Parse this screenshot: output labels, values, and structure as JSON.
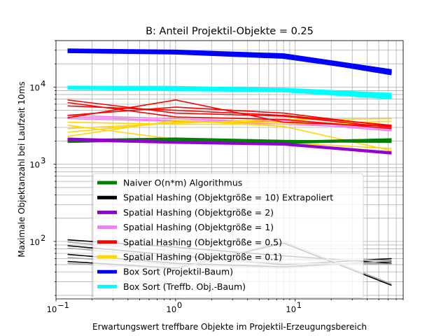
{
  "chart_data": {
    "type": "line",
    "title": "B: Anteil Projektil-Objekte = 0.25",
    "xlabel": "Erwartungswert treffbare Objekte im Projektil-Erzeugungsbereich",
    "ylabel": "Maximale Objektanzahl bei Laufzeit 10ms",
    "xscale": "log",
    "yscale": "log",
    "xlim": [
      0.1,
      80
    ],
    "ylim": [
      18,
      40000
    ],
    "grid": true,
    "legend_position": "lower-center",
    "x": [
      0.125,
      1,
      8,
      64
    ],
    "xticks": [
      {
        "value": 0.1,
        "base": "10",
        "exp": "−1"
      },
      {
        "value": 1,
        "base": "10",
        "exp": "0"
      },
      {
        "value": 10,
        "base": "10",
        "exp": "1"
      }
    ],
    "yticks": [
      {
        "value": 100,
        "base": "10",
        "exp": "2"
      },
      {
        "value": 1000,
        "base": "10",
        "exp": "3"
      },
      {
        "value": 10000,
        "base": "10",
        "exp": "4"
      }
    ],
    "series": [
      {
        "name": "Spatial Hashing (Objektgröße = 10) Extrapoliert",
        "legend_color": "#000000",
        "lines": [
          {
            "color": "#000000",
            "width": 1.6,
            "values": [
              105,
              84,
              65,
              52
            ]
          },
          {
            "color": "#000000",
            "width": 1.6,
            "values": [
              88,
              66,
              50,
              60
            ]
          },
          {
            "color": "#000000",
            "width": 1.6,
            "values": [
              68,
              52,
              47,
              55
            ]
          },
          {
            "color": "#000000",
            "width": 1.6,
            "values": [
              55,
              45,
              95,
              27
            ]
          },
          {
            "color": "#a8a8a8",
            "width": 1.6,
            "values": [
              98,
              75,
              58,
              57
            ]
          },
          {
            "color": "#a8a8a8",
            "width": 1.6,
            "values": [
              82,
              62,
              52,
              51
            ]
          },
          {
            "color": "#a8a8a8",
            "width": 1.6,
            "values": [
              62,
              50,
              45,
              56
            ]
          },
          {
            "color": "#a8a8a8",
            "width": 1.6,
            "values": [
              52,
              44,
              100,
              28
            ]
          }
        ]
      },
      {
        "name": "Spatial Hashing (Objektgröße = 1)",
        "legend_color": "#ee82ee",
        "lines": [
          {
            "color": "#ee82ee",
            "width": 1.6,
            "values": [
              4300,
              3900,
              3500,
              2700
            ]
          },
          {
            "color": "#ee82ee",
            "width": 1.6,
            "values": [
              4100,
              3700,
              3300,
              2900
            ]
          },
          {
            "color": "#ee82ee",
            "width": 1.6,
            "values": [
              3900,
              3600,
              3700,
              2800
            ]
          }
        ]
      },
      {
        "name": "Spatial Hashing (Objektgröße = 0.1)",
        "legend_color": "#ffd700",
        "lines": [
          {
            "color": "#ffd700",
            "width": 1.6,
            "values": [
              3200,
              2100,
              1900,
              1600
            ]
          },
          {
            "color": "#ffd700",
            "width": 1.6,
            "values": [
              2900,
              3400,
              3800,
              3900
            ]
          },
          {
            "color": "#ffd700",
            "width": 1.6,
            "values": [
              2600,
              3500,
              3500,
              3200
            ]
          },
          {
            "color": "#ffd700",
            "width": 1.6,
            "values": [
              3500,
              3300,
              3300,
              3600
            ]
          },
          {
            "color": "#ffd700",
            "width": 1.6,
            "values": [
              2300,
              3700,
              3100,
              1500
            ]
          }
        ]
      },
      {
        "name": "Spatial Hashing (Objektgröße = 0.5)",
        "legend_color": "#ff0000",
        "lines": [
          {
            "color": "#ff0000",
            "width": 1.6,
            "values": [
              6800,
              4600,
              4200,
              3000
            ]
          },
          {
            "color": "#ff0000",
            "width": 1.6,
            "values": [
              5700,
              5000,
              4300,
              3200
            ]
          },
          {
            "color": "#ff0000",
            "width": 1.6,
            "values": [
              4300,
              5500,
              4600,
              3100
            ]
          },
          {
            "color": "#ff0000",
            "width": 1.6,
            "values": [
              4000,
              6800,
              3500,
              3100
            ]
          },
          {
            "color": "#ff0000",
            "width": 1.6,
            "values": [
              6300,
              4100,
              3800,
              2900
            ]
          }
        ]
      },
      {
        "name": "Naiver O(n*m) Algorithmus",
        "legend_color": "#008000",
        "lines": [
          {
            "color": "#008000",
            "width": 3.2,
            "values": [
              1950,
              2100,
              1900,
              2050
            ]
          },
          {
            "color": "#008000",
            "width": 3.2,
            "values": [
              2050,
              2150,
              2000,
              1950
            ]
          },
          {
            "color": "#008000",
            "width": 3.2,
            "values": [
              2000,
              2050,
              1950,
              2100
            ]
          }
        ]
      },
      {
        "name": "Spatial Hashing (Objektgröße = 2)",
        "legend_color": "#9400d3",
        "lines": [
          {
            "color": "#9400d3",
            "width": 3,
            "values": [
              2050,
              1900,
              1800,
              1380
            ]
          },
          {
            "color": "#9400d3",
            "width": 3,
            "values": [
              2150,
              1950,
              1850,
              1420
            ]
          }
        ]
      },
      {
        "name": "Box Sort (Treffb. Obj.-Baum)",
        "legend_color": "#00ffff",
        "lines": [
          {
            "color": "#00ffff",
            "width": 5,
            "values": [
              9700,
              9500,
              9000,
              7300
            ]
          },
          {
            "color": "#00ffff",
            "width": 5,
            "values": [
              9900,
              9800,
              9300,
              8000
            ]
          },
          {
            "color": "#00ffff",
            "width": 5,
            "values": [
              9800,
              9300,
              9100,
              7700
            ]
          }
        ]
      },
      {
        "name": "Box Sort (Projektil-Baum)",
        "legend_color": "#0000ff",
        "lines": [
          {
            "color": "#0000ff",
            "width": 5,
            "values": [
              29500,
              28500,
              25500,
              15000
            ]
          },
          {
            "color": "#0000ff",
            "width": 5,
            "values": [
              30000,
              29000,
              26000,
              16200
            ]
          },
          {
            "color": "#0000ff",
            "width": 5,
            "values": [
              29000,
              27800,
              24500,
              15500
            ]
          }
        ]
      }
    ],
    "legend_order": [
      "Naiver O(n*m) Algorithmus",
      "Spatial Hashing (Objektgröße = 10) Extrapoliert",
      "Spatial Hashing (Objektgröße = 2)",
      "Spatial Hashing (Objektgröße = 1)",
      "Spatial Hashing (Objektgröße = 0.5)",
      "Spatial Hashing (Objektgröße = 0.1)",
      "Box Sort (Projektil-Baum)",
      "Box Sort (Treffb. Obj.-Baum)"
    ]
  }
}
